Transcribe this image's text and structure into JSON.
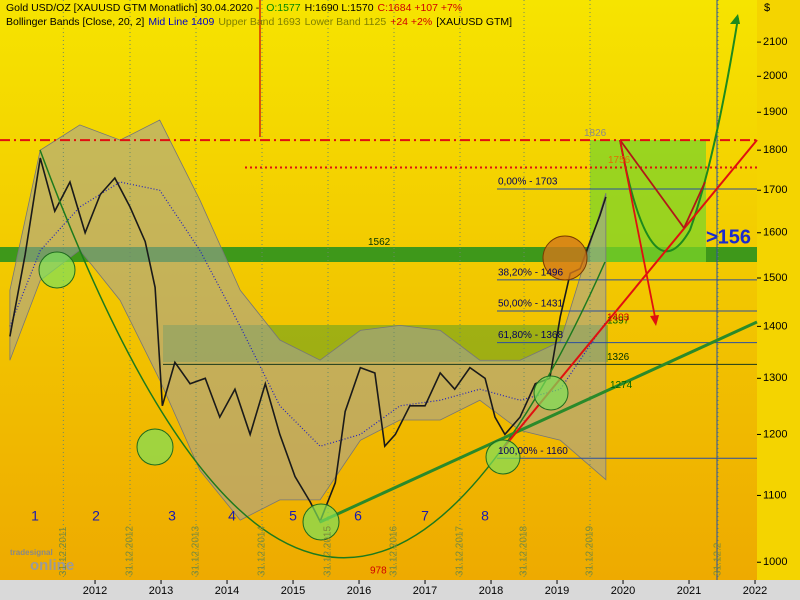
{
  "chart_data": {
    "type": "line",
    "title_parts": [
      {
        "text": "Gold USD/OZ [XAUUSD GTM  Monatlich] 30.04.2020 - ",
        "color": "#000000"
      },
      {
        "text": "O:1577",
        "color": "#008800"
      },
      {
        "text": "H:1690 L:1570",
        "color": "#000000"
      },
      {
        "text": "C:1684 +107 +7%",
        "color": "#d00000"
      }
    ],
    "subtitle_parts": [
      {
        "text": "Bollinger Bands [Close, 20, 2]",
        "color": "#000000"
      },
      {
        "text": "Mid Line 1409",
        "color": "#0000cc"
      },
      {
        "text": "Upper Band 1693",
        "color": "#808000"
      },
      {
        "text": "Lower Band 1125",
        "color": "#808000"
      },
      {
        "text": "+24 +2%",
        "color": "#d00000"
      },
      {
        "text": "[XAUUSD GTM]",
        "color": "#000000"
      }
    ],
    "y_unit": "$",
    "log_scale": true,
    "xlim": [
      2010.56,
      2022.03
    ],
    "xticks": [
      2012,
      2013,
      2014,
      2015,
      2016,
      2017,
      2018,
      2019,
      2020,
      2021,
      2022
    ],
    "ylim": [
      975,
      2230
    ],
    "yticks": [
      1000,
      1100,
      1200,
      1300,
      1400,
      1500,
      1600,
      1700,
      1800,
      1900,
      2000,
      2100
    ],
    "x": [
      2010.71,
      2010.94,
      2011.17,
      2011.39,
      2011.62,
      2011.85,
      2012.08,
      2012.3,
      2012.53,
      2012.76,
      2012.91,
      2013.02,
      2013.21,
      2013.44,
      2013.67,
      2013.89,
      2014.12,
      2014.35,
      2014.58,
      2014.8,
      2015.03,
      2015.26,
      2015.41,
      2015.64,
      2015.79,
      2016.02,
      2016.24,
      2016.39,
      2016.55,
      2016.77,
      2017.0,
      2017.23,
      2017.45,
      2017.68,
      2017.91,
      2018.06,
      2018.21,
      2018.44,
      2018.67,
      2018.89,
      2019.05,
      2019.2,
      2019.35,
      2019.5,
      2019.65,
      2019.74
    ],
    "series": [
      {
        "name": "Gold USD/OZ",
        "color": "#1a1a1a",
        "values": [
          1380,
          1550,
          1780,
          1650,
          1720,
          1600,
          1690,
          1730,
          1660,
          1580,
          1480,
          1250,
          1330,
          1290,
          1300,
          1230,
          1280,
          1200,
          1290,
          1200,
          1130,
          1090,
          1060,
          1120,
          1240,
          1320,
          1310,
          1180,
          1200,
          1250,
          1250,
          1310,
          1280,
          1320,
          1300,
          1230,
          1200,
          1230,
          1290,
          1300,
          1420,
          1510,
          1520,
          1580,
          1640,
          1684
        ]
      }
    ],
    "bands": {
      "x": [
        2010.71,
        2011.17,
        2011.77,
        2012.38,
        2012.98,
        2013.59,
        2014.2,
        2014.8,
        2015.41,
        2016.02,
        2016.62,
        2017.23,
        2017.83,
        2018.44,
        2019.05,
        2019.74
      ],
      "upper": [
        1474,
        1800,
        1866,
        1826,
        1879,
        1676,
        1474,
        1373,
        1334,
        1392,
        1402,
        1392,
        1334,
        1334,
        1370,
        1693
      ],
      "middle": [
        1400,
        1560,
        1660,
        1720,
        1700,
        1560,
        1400,
        1250,
        1180,
        1200,
        1250,
        1260,
        1280,
        1260,
        1280,
        1409
      ],
      "lower": [
        1334,
        1495,
        1561,
        1453,
        1297,
        1140,
        1062,
        1093,
        1093,
        1190,
        1225,
        1225,
        1260,
        1207,
        1190,
        1125
      ],
      "fill": "#a0a0a0",
      "mid_color": "#2020c0"
    },
    "levels": [
      {
        "value": 1826,
        "label": "1826",
        "color": "#8a8a8a"
      },
      {
        "value": 1756,
        "label": "1756",
        "color": "#e07000"
      },
      {
        "value": 1703,
        "label": "0,00% - 1703",
        "color": "#000060"
      },
      {
        "value": 1562,
        "label": "1562",
        "color": "#003300"
      },
      {
        "value": 1496,
        "label": "38,20% - 1496",
        "color": "#000060"
      },
      {
        "value": 1431,
        "label": "50,00% - 1431",
        "color": "#000060"
      },
      {
        "value": 1368,
        "label": "61,80% - 1368",
        "color": "#000060"
      },
      {
        "value": 1160,
        "label": "100,00% - 1160",
        "color": "#000060"
      },
      {
        "value": 1397,
        "label": "1397",
        "color": "#006600"
      },
      {
        "value": 1403,
        "label": "1403",
        "color": "#d00000"
      },
      {
        "value": 1326,
        "label": "1326",
        "color": "#003300"
      },
      {
        "value": 1274,
        "label": "1274",
        "color": "#006600"
      },
      {
        "value": 978,
        "label": "978",
        "color": "#d00000"
      }
    ],
    "date_lines": [
      {
        "x": 2011.52,
        "label": "31.12.2011"
      },
      {
        "x": 2012.53,
        "label": "31.12.2012"
      },
      {
        "x": 2013.53,
        "label": "31.12.2013"
      },
      {
        "x": 2014.53,
        "label": "31.12.2014"
      },
      {
        "x": 2015.53,
        "label": "31.12.2015"
      },
      {
        "x": 2016.53,
        "label": "31.12.2016"
      },
      {
        "x": 2017.53,
        "label": "31.12.2017"
      },
      {
        "x": 2018.5,
        "label": "31.12.2018"
      },
      {
        "x": 2019.5,
        "label": "31.12.2019"
      },
      {
        "x": 2021.44,
        "label": "31.12.2"
      }
    ],
    "waves": [
      "1",
      "2",
      "3",
      "4",
      "5",
      "6",
      "7",
      "8"
    ],
    "projection_label": ">156",
    "logo": [
      "tradesignal",
      "online"
    ]
  }
}
